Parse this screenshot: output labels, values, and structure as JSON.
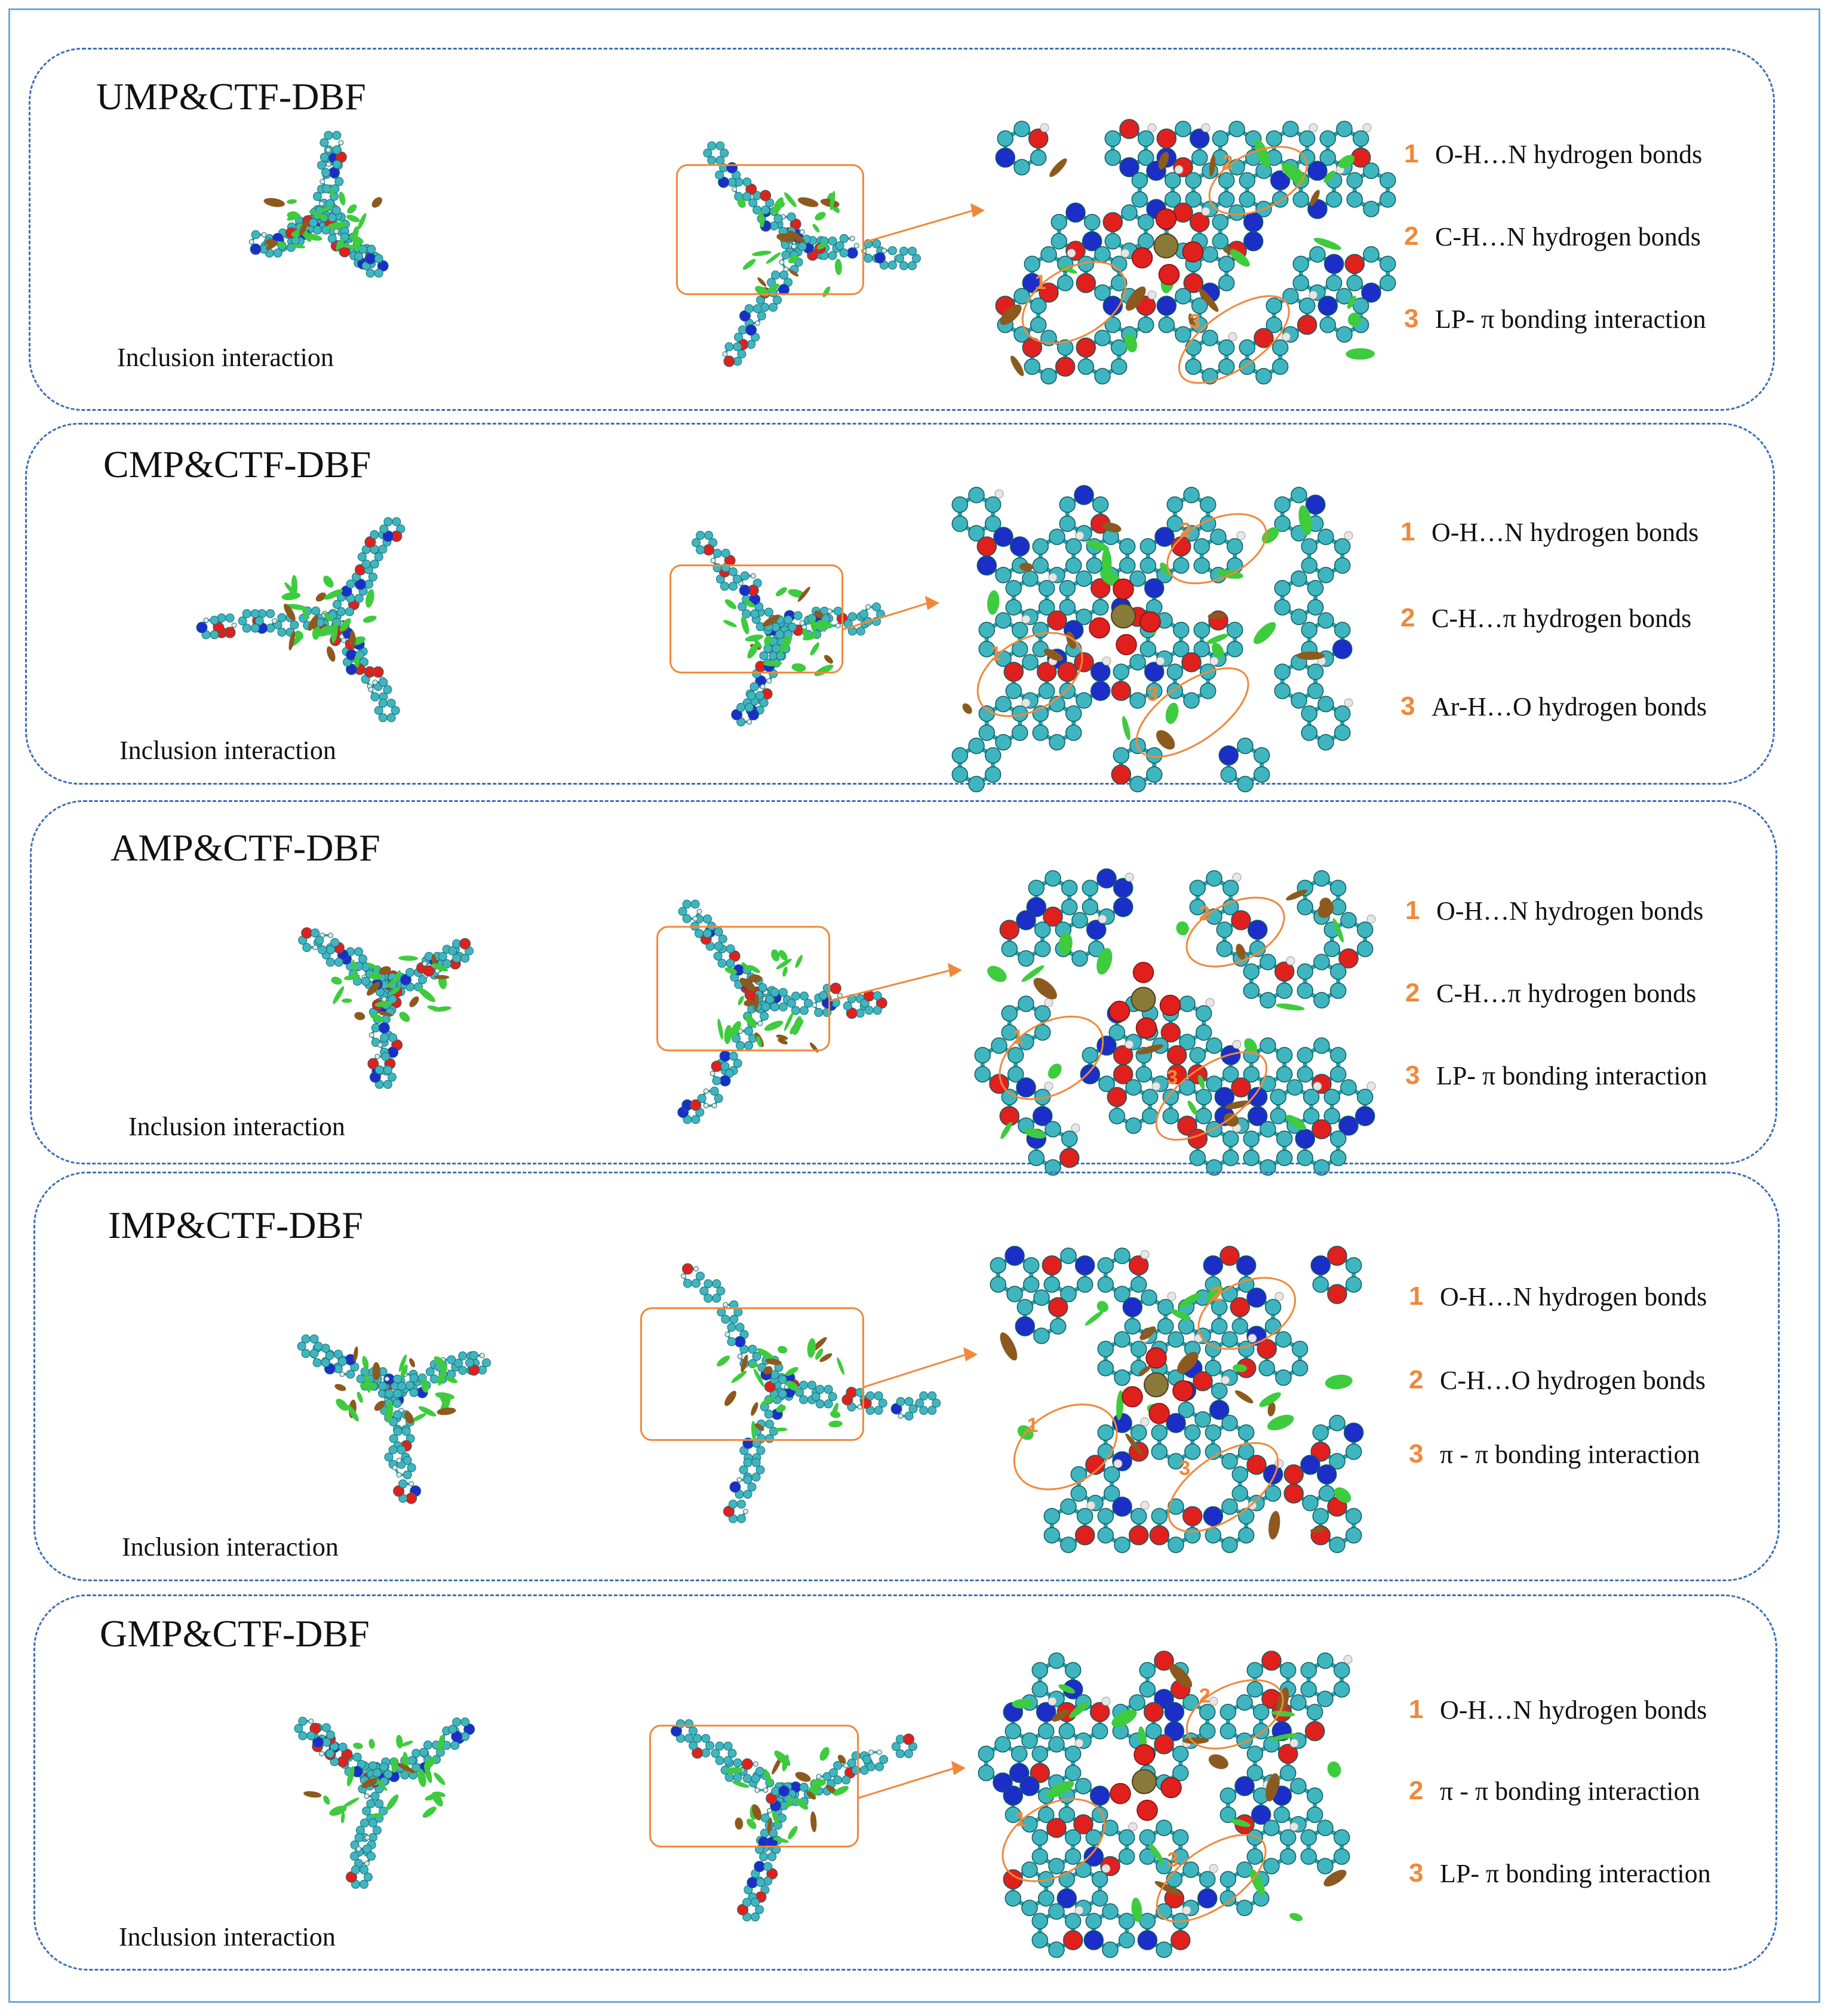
{
  "colors": {
    "carbon": "#3fb5bf",
    "oxygen": "#e0201c",
    "nitrogen": "#1c2ec8",
    "hydrogen": "#e6e6e6",
    "phosphorus": "#8a7a3a",
    "bond": "#2aa0aa",
    "rdg_green": "#3ecb3e",
    "rdg_brown": "#8c5a1e",
    "accent_orange": "#f0883a",
    "panel_border": "#3d6fb6",
    "frame_border": "#6fa8dc"
  },
  "panels": [
    {
      "title": "UMP&CTF-DBF",
      "caption": "Inclusion interaction",
      "labels": [
        "1",
        "2",
        "3"
      ],
      "legend": [
        {
          "num": "1",
          "text": "O-H…N hydrogen bonds"
        },
        {
          "num": "2",
          "text": "C-H…N hydrogen bonds"
        },
        {
          "num": "3",
          "text": "LP- π bonding interaction"
        }
      ]
    },
    {
      "title": "CMP&CTF-DBF",
      "caption": "Inclusion interaction",
      "labels": [
        "1",
        "2",
        "3"
      ],
      "legend": [
        {
          "num": "1",
          "text": "O-H…N hydrogen bonds"
        },
        {
          "num": "2",
          "text": "C-H…π hydrogen bonds"
        },
        {
          "num": "3",
          "text": "Ar-H…O hydrogen bonds"
        }
      ]
    },
    {
      "title": "AMP&CTF-DBF",
      "caption": "Inclusion interaction",
      "labels": [
        "1",
        "2",
        "3"
      ],
      "legend": [
        {
          "num": "1",
          "text": "O-H…N hydrogen bonds"
        },
        {
          "num": "2",
          "text": "C-H…π hydrogen bonds"
        },
        {
          "num": "3",
          "text": "LP- π bonding interaction"
        }
      ]
    },
    {
      "title": "IMP&CTF-DBF",
      "caption": "Inclusion interaction",
      "labels": [
        "1",
        "2",
        "3"
      ],
      "legend": [
        {
          "num": "1",
          "text": "O-H…N hydrogen bonds"
        },
        {
          "num": "2",
          "text": "C-H…O hydrogen bonds"
        },
        {
          "num": "3",
          "text": "π - π bonding interaction"
        }
      ]
    },
    {
      "title": "GMP&CTF-DBF",
      "caption": "Inclusion interaction",
      "labels": [
        "1",
        "2",
        "3"
      ],
      "legend": [
        {
          "num": "1",
          "text": "O-H…N hydrogen bonds"
        },
        {
          "num": "2",
          "text": "π - π bonding interaction"
        },
        {
          "num": "3",
          "text": "LP- π bonding interaction"
        }
      ]
    }
  ]
}
